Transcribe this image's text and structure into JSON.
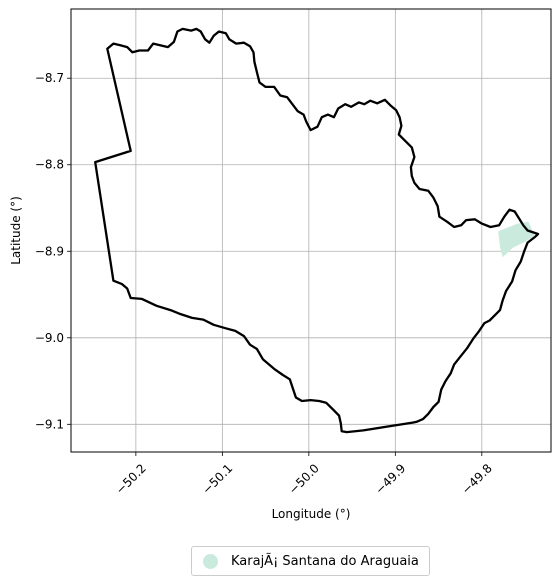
{
  "chart_data": {
    "type": "map",
    "xlabel": "Longitude (°)",
    "ylabel": "Latitude (°)",
    "xlim": [
      -50.275,
      -49.72
    ],
    "ylim": [
      -9.132,
      -8.62
    ],
    "grid": true,
    "x_ticks": [
      {
        "value": -50.2,
        "label": "−50.2"
      },
      {
        "value": -50.1,
        "label": "−50.1"
      },
      {
        "value": -50.0,
        "label": "−50.0"
      },
      {
        "value": -49.9,
        "label": "−49.9"
      },
      {
        "value": -49.8,
        "label": "−49.8"
      }
    ],
    "y_ticks": [
      {
        "value": -8.7,
        "label": "−8.7"
      },
      {
        "value": -8.8,
        "label": "−8.8"
      },
      {
        "value": -8.9,
        "label": "−8.9"
      },
      {
        "value": -9.0,
        "label": "−9.0"
      },
      {
        "value": -9.1,
        "label": "−9.1"
      }
    ],
    "legend_position": "bottom-center",
    "boundary": [
      [
        -50.233,
        -8.666
      ],
      [
        -50.226,
        -8.66
      ],
      [
        -50.218,
        -8.662
      ],
      [
        -50.21,
        -8.664
      ],
      [
        -50.204,
        -8.67
      ],
      [
        -50.196,
        -8.668
      ],
      [
        -50.186,
        -8.668
      ],
      [
        -50.18,
        -8.66
      ],
      [
        -50.172,
        -8.662
      ],
      [
        -50.163,
        -8.664
      ],
      [
        -50.156,
        -8.658
      ],
      [
        -50.152,
        -8.646
      ],
      [
        -50.146,
        -8.643
      ],
      [
        -50.136,
        -8.645
      ],
      [
        -50.13,
        -8.643
      ],
      [
        -50.125,
        -8.646
      ],
      [
        -50.12,
        -8.655
      ],
      [
        -50.115,
        -8.659
      ],
      [
        -50.11,
        -8.651
      ],
      [
        -50.104,
        -8.646
      ],
      [
        -50.096,
        -8.648
      ],
      [
        -50.092,
        -8.655
      ],
      [
        -50.084,
        -8.66
      ],
      [
        -50.075,
        -8.659
      ],
      [
        -50.068,
        -8.663
      ],
      [
        -50.064,
        -8.67
      ],
      [
        -50.063,
        -8.681
      ],
      [
        -50.06,
        -8.693
      ],
      [
        -50.057,
        -8.705
      ],
      [
        -50.05,
        -8.71
      ],
      [
        -50.04,
        -8.71
      ],
      [
        -50.033,
        -8.72
      ],
      [
        -50.025,
        -8.722
      ],
      [
        -50.019,
        -8.73
      ],
      [
        -50.013,
        -8.738
      ],
      [
        -50.006,
        -8.742
      ],
      [
        -50.003,
        -8.75
      ],
      [
        -49.998,
        -8.76
      ],
      [
        -49.99,
        -8.756
      ],
      [
        -49.985,
        -8.745
      ],
      [
        -49.978,
        -8.742
      ],
      [
        -49.971,
        -8.745
      ],
      [
        -49.966,
        -8.735
      ],
      [
        -49.958,
        -8.73
      ],
      [
        -49.951,
        -8.733
      ],
      [
        -49.942,
        -8.728
      ],
      [
        -49.936,
        -8.73
      ],
      [
        -49.929,
        -8.726
      ],
      [
        -49.921,
        -8.729
      ],
      [
        -49.912,
        -8.725
      ],
      [
        -49.905,
        -8.732
      ],
      [
        -49.899,
        -8.737
      ],
      [
        -49.895,
        -8.745
      ],
      [
        -49.893,
        -8.755
      ],
      [
        -49.896,
        -8.765
      ],
      [
        -49.89,
        -8.771
      ],
      [
        -49.881,
        -8.78
      ],
      [
        -49.878,
        -8.791
      ],
      [
        -49.882,
        -8.803
      ],
      [
        -49.881,
        -8.813
      ],
      [
        -49.878,
        -8.821
      ],
      [
        -49.872,
        -8.828
      ],
      [
        -49.862,
        -8.83
      ],
      [
        -49.856,
        -8.838
      ],
      [
        -49.851,
        -8.848
      ],
      [
        -49.849,
        -8.86
      ],
      [
        -49.84,
        -8.866
      ],
      [
        -49.832,
        -8.872
      ],
      [
        -49.824,
        -8.87
      ],
      [
        -49.818,
        -8.864
      ],
      [
        -49.808,
        -8.863
      ],
      [
        -49.8,
        -8.868
      ],
      [
        -49.79,
        -8.872
      ],
      [
        -49.78,
        -8.87
      ],
      [
        -49.774,
        -8.86
      ],
      [
        -49.768,
        -8.852
      ],
      [
        -49.762,
        -8.854
      ],
      [
        -49.757,
        -8.862
      ],
      [
        -49.752,
        -8.87
      ],
      [
        -49.747,
        -8.876
      ],
      [
        -49.735,
        -8.88
      ],
      [
        -49.738,
        -8.883
      ],
      [
        -49.747,
        -8.89
      ],
      [
        -49.751,
        -8.9
      ],
      [
        -49.755,
        -8.912
      ],
      [
        -49.761,
        -8.922
      ],
      [
        -49.765,
        -8.935
      ],
      [
        -49.772,
        -8.946
      ],
      [
        -49.776,
        -8.957
      ],
      [
        -49.779,
        -8.968
      ],
      [
        -49.785,
        -8.974
      ],
      [
        -49.791,
        -8.98
      ],
      [
        -49.797,
        -8.983
      ],
      [
        -49.803,
        -8.992
      ],
      [
        -49.81,
        -9.001
      ],
      [
        -49.817,
        -9.012
      ],
      [
        -49.825,
        -9.022
      ],
      [
        -49.832,
        -9.031
      ],
      [
        -49.836,
        -9.041
      ],
      [
        -49.842,
        -9.05
      ],
      [
        -49.847,
        -9.06
      ],
      [
        -49.85,
        -9.074
      ],
      [
        -49.856,
        -9.08
      ],
      [
        -49.862,
        -9.088
      ],
      [
        -49.868,
        -9.094
      ],
      [
        -49.875,
        -9.097
      ],
      [
        -49.88,
        -9.098
      ],
      [
        -49.905,
        -9.102
      ],
      [
        -49.937,
        -9.107
      ],
      [
        -49.956,
        -9.109
      ],
      [
        -49.962,
        -9.108
      ],
      [
        -49.963,
        -9.099
      ],
      [
        -49.965,
        -9.09
      ],
      [
        -49.972,
        -9.083
      ],
      [
        -49.98,
        -9.075
      ],
      [
        -49.988,
        -9.073
      ],
      [
        -49.998,
        -9.072
      ],
      [
        -50.008,
        -9.073
      ],
      [
        -50.015,
        -9.069
      ],
      [
        -50.018,
        -9.06
      ],
      [
        -50.022,
        -9.048
      ],
      [
        -50.03,
        -9.043
      ],
      [
        -50.04,
        -9.036
      ],
      [
        -50.053,
        -9.025
      ],
      [
        -50.06,
        -9.013
      ],
      [
        -50.068,
        -9.008
      ],
      [
        -50.075,
        -8.998
      ],
      [
        -50.085,
        -8.992
      ],
      [
        -50.096,
        -8.989
      ],
      [
        -50.11,
        -8.985
      ],
      [
        -50.122,
        -8.979
      ],
      [
        -50.135,
        -8.977
      ],
      [
        -50.15,
        -8.972
      ],
      [
        -50.16,
        -8.968
      ],
      [
        -50.176,
        -8.963
      ],
      [
        -50.193,
        -8.955
      ],
      [
        -50.206,
        -8.954
      ],
      [
        -50.21,
        -8.943
      ],
      [
        -50.216,
        -8.938
      ],
      [
        -50.226,
        -8.934
      ],
      [
        -50.247,
        -8.797
      ],
      [
        -50.206,
        -8.784
      ],
      [
        -50.233,
        -8.666
      ]
    ],
    "series": [
      {
        "name": "KarajÃ¡ Santana do Araguaia",
        "color": "#cbeade",
        "polygon": [
          [
            -49.781,
            -8.877
          ],
          [
            -49.759,
            -8.868
          ],
          [
            -49.746,
            -8.866
          ],
          [
            -49.739,
            -8.882
          ],
          [
            -49.75,
            -8.889
          ],
          [
            -49.764,
            -8.896
          ],
          [
            -49.776,
            -8.907
          ],
          [
            -49.779,
            -8.895
          ]
        ]
      }
    ]
  }
}
